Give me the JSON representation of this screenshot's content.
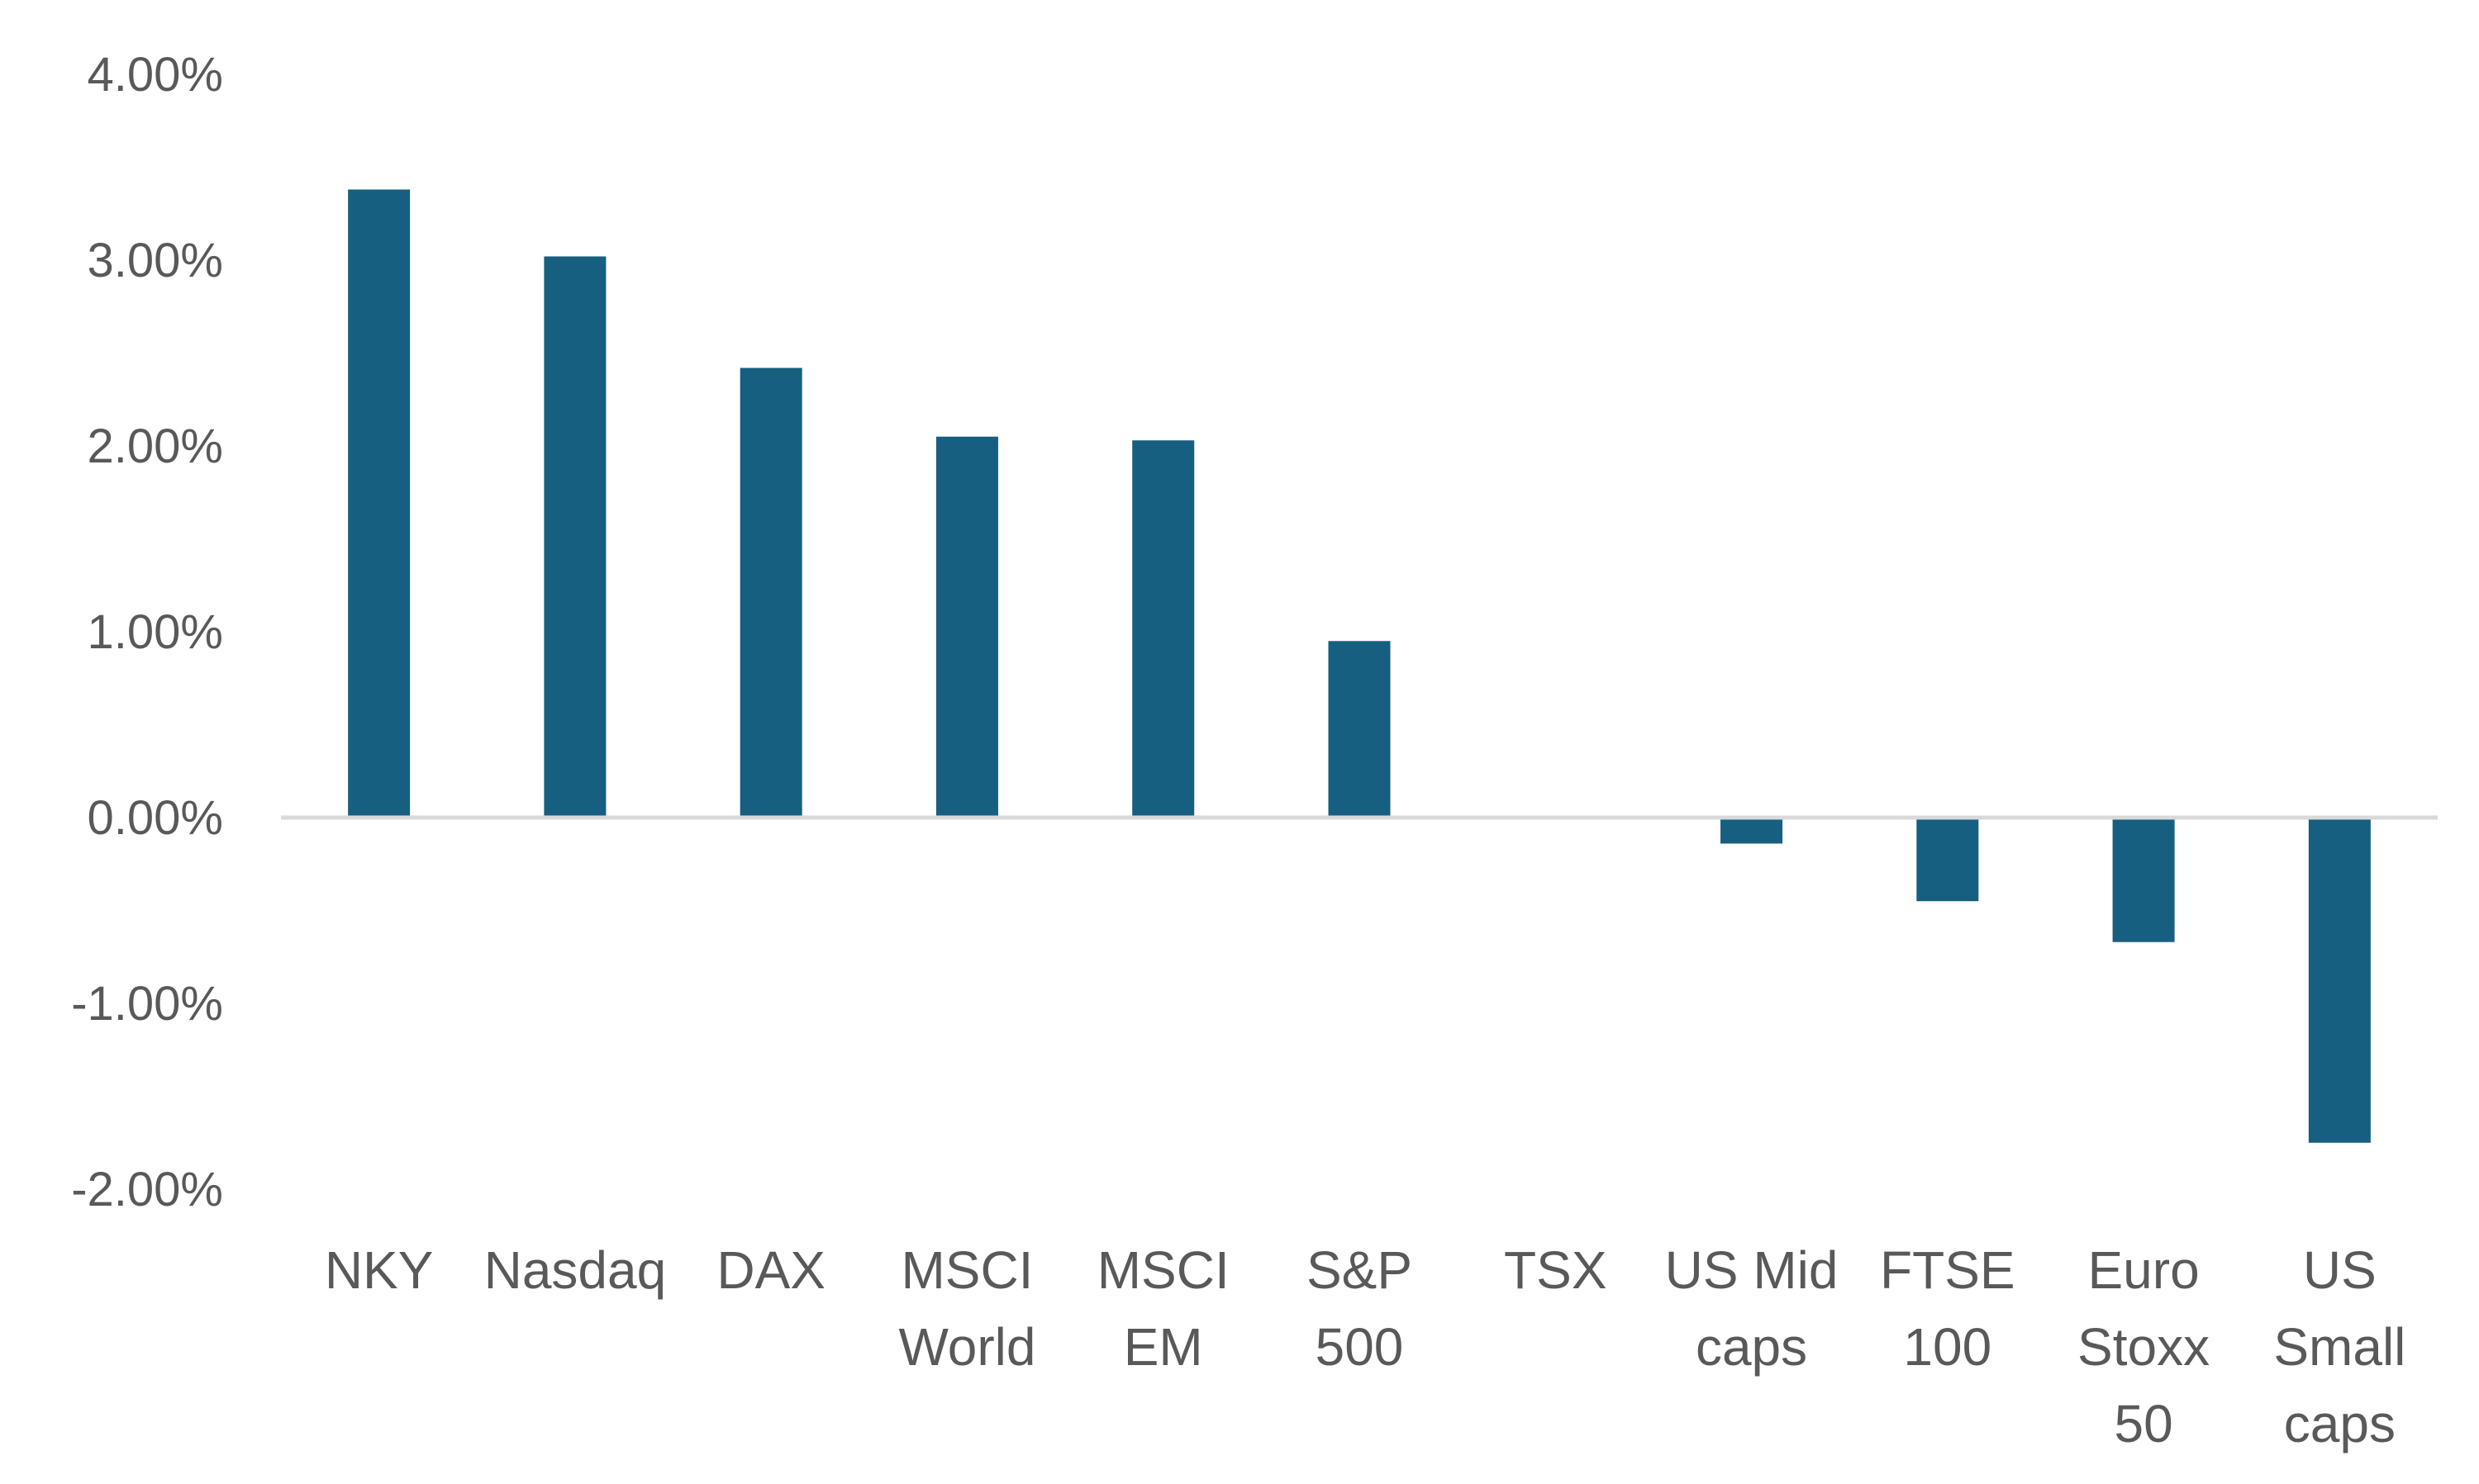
{
  "chart_data": {
    "type": "bar",
    "title": "",
    "xlabel": "",
    "ylabel": "",
    "ylim": [
      -2.0,
      4.0
    ],
    "ytick_values": [
      -2.0,
      -1.0,
      0.0,
      1.0,
      2.0,
      3.0,
      4.0
    ],
    "ytick_labels": [
      "-2.00%",
      "-1.00%",
      "0.00%",
      "1.00%",
      "2.00%",
      "3.00%",
      "4.00%"
    ],
    "grid": false,
    "legend": "none",
    "categories": [
      [
        "NKY"
      ],
      [
        "Nasdaq"
      ],
      [
        "DAX"
      ],
      [
        "MSCI",
        "World"
      ],
      [
        "MSCI",
        "EM"
      ],
      [
        "S&P",
        "500"
      ],
      [
        "TSX"
      ],
      [
        "US Mid",
        "caps"
      ],
      [
        "FTSE",
        "100"
      ],
      [
        "Euro",
        "Stoxx",
        "50"
      ],
      [
        "US",
        "Small",
        "caps"
      ]
    ],
    "values": [
      3.38,
      3.02,
      2.42,
      2.05,
      2.03,
      0.95,
      0.0,
      -0.14,
      -0.45,
      -0.67,
      -1.75
    ],
    "colors": {
      "bar": "#165F80",
      "axis": "#D9D9D9",
      "text": "#595959"
    }
  }
}
